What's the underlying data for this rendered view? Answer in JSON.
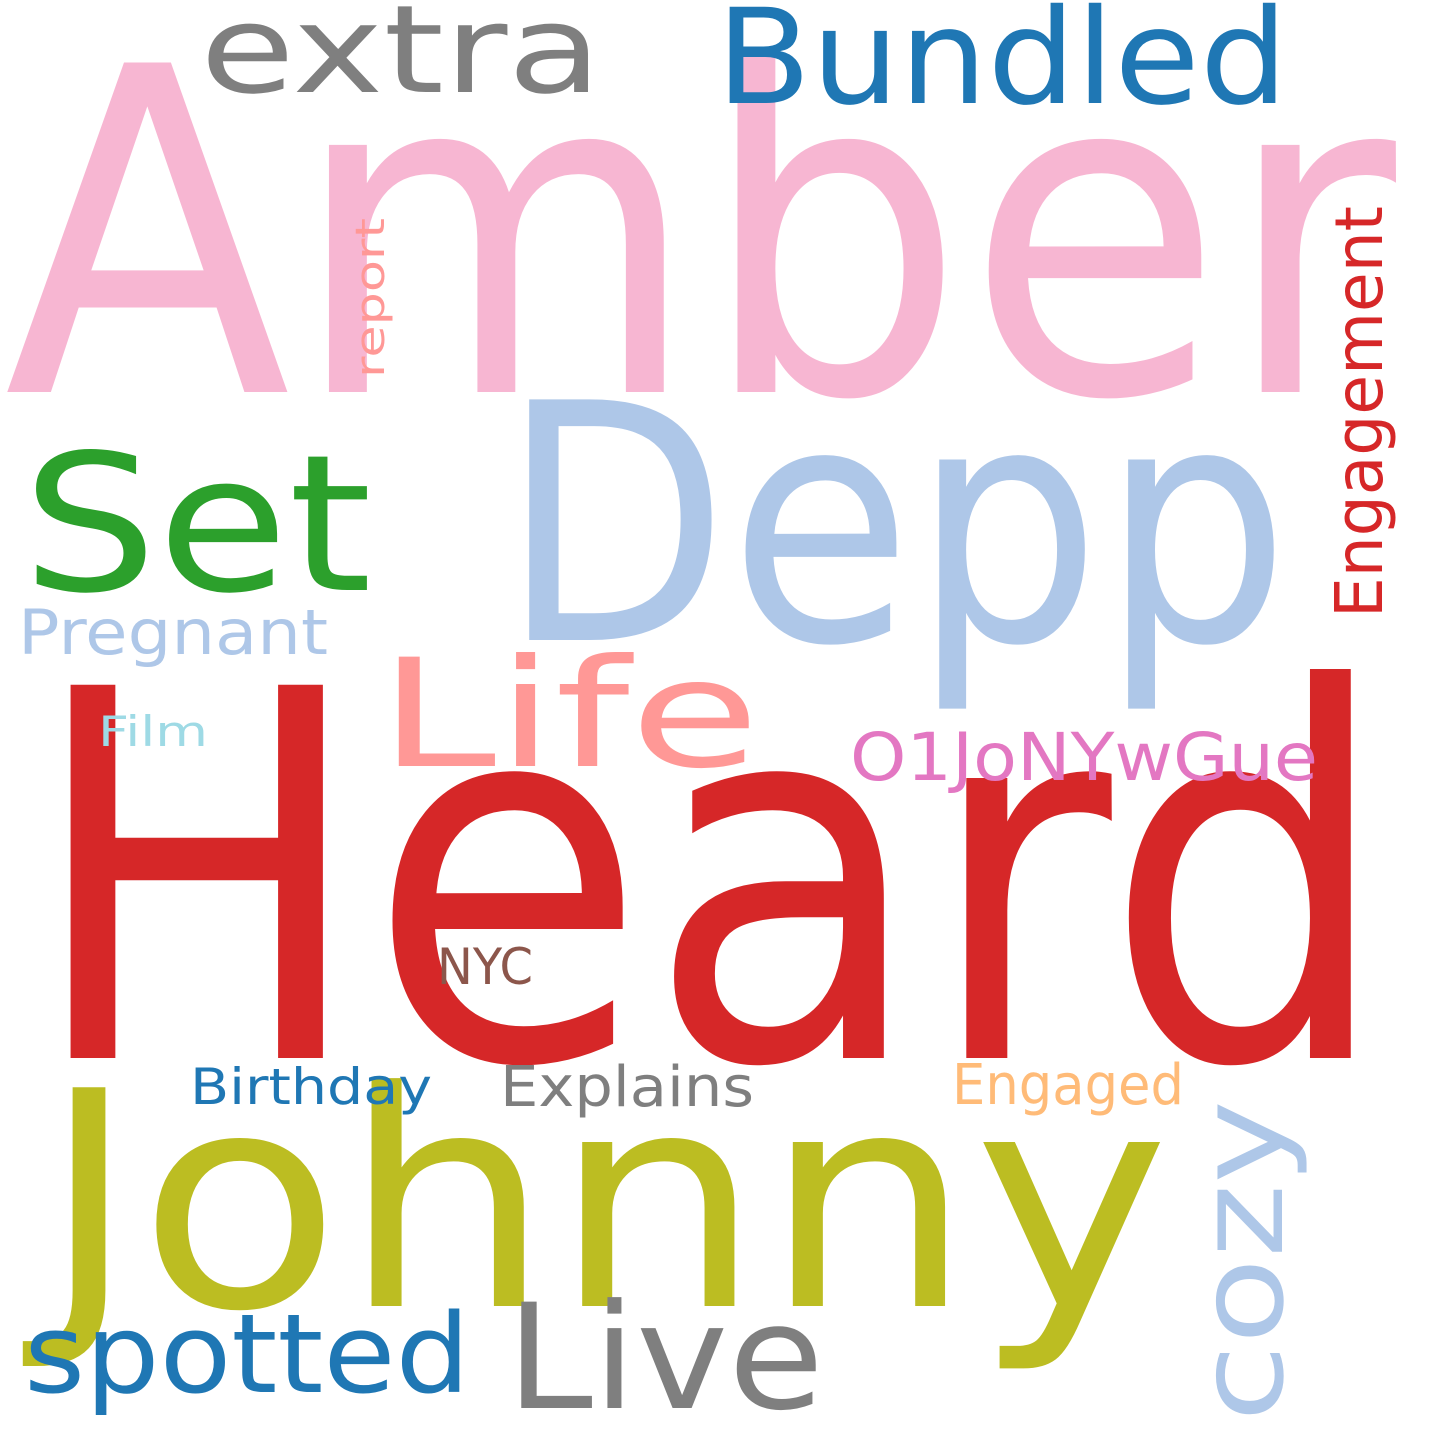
{
  "word_cloud": {
    "background": "#ffffff",
    "words": [
      {
        "text": "Amber",
        "color": "#f7b6d2",
        "orientation": "horizontal"
      },
      {
        "text": "Heard",
        "color": "#d62728",
        "orientation": "horizontal"
      },
      {
        "text": "Depp",
        "color": "#aec7e8",
        "orientation": "horizontal"
      },
      {
        "text": "Johnny",
        "color": "#bcbd22",
        "orientation": "horizontal"
      },
      {
        "text": "Set",
        "color": "#2ca02c",
        "orientation": "horizontal"
      },
      {
        "text": "Bundled",
        "color": "#1f77b4",
        "orientation": "horizontal"
      },
      {
        "text": "extra",
        "color": "#7f7f7f",
        "orientation": "horizontal"
      },
      {
        "text": "Life",
        "color": "#ff9896",
        "orientation": "horizontal"
      },
      {
        "text": "Engagement",
        "color": "#d62728",
        "orientation": "vertical"
      },
      {
        "text": "report",
        "color": "#ff9896",
        "orientation": "vertical"
      },
      {
        "text": "Pregnant",
        "color": "#aec7e8",
        "orientation": "horizontal"
      },
      {
        "text": "Film",
        "color": "#9edae5",
        "orientation": "horizontal"
      },
      {
        "text": "O1JoNYwGue",
        "color": "#e377c2",
        "orientation": "horizontal"
      },
      {
        "text": "NYC",
        "color": "#8c564b",
        "orientation": "horizontal"
      },
      {
        "text": "Birthday",
        "color": "#1f77b4",
        "orientation": "horizontal"
      },
      {
        "text": "Explains",
        "color": "#7f7f7f",
        "orientation": "horizontal"
      },
      {
        "text": "Engaged",
        "color": "#ffbb78",
        "orientation": "horizontal"
      },
      {
        "text": "cozy",
        "color": "#aec7e8",
        "orientation": "vertical"
      },
      {
        "text": "spotted",
        "color": "#1f77b4",
        "orientation": "horizontal"
      },
      {
        "text": "Live",
        "color": "#7f7f7f",
        "orientation": "horizontal"
      }
    ]
  }
}
